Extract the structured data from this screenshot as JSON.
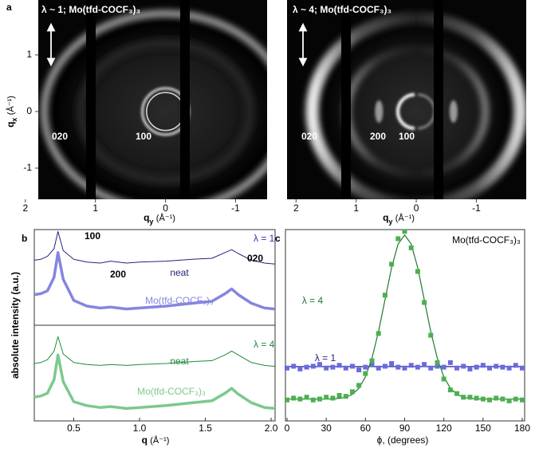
{
  "chart_data": [
    {
      "type": "diffraction",
      "panel": "a",
      "title": "λ ~ 1; Mo(tfd-COCF₃)₃",
      "x_label": {
        "symbol": "q",
        "subscript": "y",
        "unit": "(Å⁻¹)"
      },
      "y_label": {
        "symbol": "q",
        "subscript": "x",
        "unit": "(Å⁻¹)"
      },
      "xlim": [
        2.1,
        -1.45
      ],
      "xticks": [
        2,
        1,
        0,
        -1
      ],
      "ylim": [
        1.97,
        -1.55
      ],
      "yticks": [
        1,
        0,
        -1
      ],
      "annotations": [
        "020",
        "100"
      ]
    },
    {
      "type": "diffraction",
      "title": "λ ~ 4; Mo(tfd-COCF₃)₃",
      "x_label": {
        "symbol": "q",
        "subscript": "y",
        "unit": "(Å⁻¹)"
      },
      "xlim": [
        2.15,
        -1.83
      ],
      "xticks": [
        2,
        1,
        0,
        -1
      ],
      "ylim": [
        1.97,
        -1.55
      ],
      "annotations": [
        "020",
        "200",
        "100"
      ]
    },
    {
      "type": "line",
      "panel": "b",
      "x_label": {
        "symbol": "q",
        "unit": "(Å⁻¹)"
      },
      "y_label": "absolute intensity (a.u.)",
      "xlim": [
        0.2,
        2.03
      ],
      "xticks": [
        0.5,
        {
          "value": 1,
          "label": "1.0"
        },
        1.5,
        {
          "value": 2,
          "label": "2.0"
        }
      ],
      "x": [
        0.2,
        0.25,
        0.3,
        0.35,
        0.38,
        0.42,
        0.5,
        0.6,
        0.7,
        0.78,
        0.9,
        1.0,
        1.2,
        1.4,
        1.55,
        1.65,
        1.7,
        1.75,
        1.85,
        1.95,
        2.03
      ],
      "panels": [
        {
          "label": "λ = 1",
          "label_color": "#3333bb",
          "ylim": [
            0,
            10
          ],
          "annotations": [
            "100",
            "200",
            "020"
          ],
          "series": [
            {
              "name": "neat",
              "color": "#23237a",
              "values": [
                6.8,
                6.9,
                7.2,
                8.0,
                9.8,
                7.8,
                6.9,
                6.6,
                6.5,
                6.7,
                6.5,
                6.6,
                6.7,
                6.9,
                7.0,
                7.6,
                7.9,
                7.5,
                6.8,
                6.5,
                6.4
              ]
            },
            {
              "name": "Mo(tfd-COCF₃)₃",
              "color": "#8585e0",
              "values": [
                3.2,
                3.3,
                3.6,
                5.0,
                7.6,
                4.8,
                2.6,
                2.0,
                1.8,
                1.9,
                1.7,
                1.8,
                2.0,
                2.3,
                2.5,
                3.3,
                3.8,
                3.2,
                2.3,
                1.8,
                1.7
              ]
            }
          ]
        },
        {
          "label": "λ = 4",
          "label_color": "#1e8a3c",
          "ylim": [
            0,
            10
          ],
          "series": [
            {
              "name": "neat",
              "color": "#1e8a3c",
              "values": [
                6.0,
                6.1,
                6.4,
                7.3,
                8.8,
                7.0,
                6.1,
                5.9,
                5.8,
                5.9,
                5.8,
                5.9,
                6.0,
                6.2,
                6.3,
                6.9,
                7.3,
                6.9,
                6.1,
                5.8,
                5.7
              ]
            },
            {
              "name": "Mo(tfd-COCF₃)₃",
              "color": "#7cc98c",
              "values": [
                2.5,
                2.6,
                2.9,
                4.3,
                6.9,
                4.1,
                2.0,
                1.6,
                1.4,
                1.5,
                1.3,
                1.4,
                1.6,
                1.9,
                2.1,
                2.9,
                3.4,
                2.8,
                1.9,
                1.4,
                1.3
              ]
            }
          ]
        }
      ]
    },
    {
      "type": "scatter",
      "panel": "c",
      "title": "Mo(tfd-COCF₃)₃",
      "x_label": "ϕ, (degrees)",
      "xlim": [
        0,
        180
      ],
      "xticks": [
        0,
        30,
        60,
        90,
        120,
        150,
        180
      ],
      "ylim": [
        0,
        10.5
      ],
      "x": [
        0,
        5,
        10,
        15,
        20,
        25,
        30,
        35,
        40,
        45,
        50,
        55,
        60,
        65,
        70,
        75,
        80,
        85,
        90,
        95,
        100,
        105,
        110,
        115,
        120,
        125,
        130,
        135,
        140,
        145,
        150,
        155,
        160,
        165,
        170,
        175,
        180
      ],
      "series": [
        {
          "name": "λ = 1",
          "color": "#6a6ae0",
          "fit_color": "#23237a",
          "values": [
            2.9,
            3.0,
            2.85,
            2.95,
            3.0,
            3.1,
            2.9,
            2.95,
            3.05,
            2.9,
            3.0,
            2.8,
            2.95,
            3.1,
            2.9,
            3.0,
            3.15,
            2.95,
            2.9,
            3.05,
            2.95,
            3.1,
            2.9,
            3.0,
            2.95,
            3.2,
            2.9,
            3.0,
            2.85,
            2.95,
            3.05,
            2.9,
            3.0,
            2.95,
            2.9,
            3.05,
            2.9
          ],
          "fit_x": [
            0,
            180
          ],
          "fit_values": [
            2.98,
            2.98
          ]
        },
        {
          "name": "λ = 4",
          "color": "#4caf50",
          "fit_color": "#1e7a32",
          "values": [
            1.15,
            1.25,
            1.2,
            1.3,
            1.15,
            1.2,
            1.3,
            1.25,
            1.4,
            1.35,
            1.6,
            1.95,
            2.6,
            3.3,
            4.8,
            6.9,
            8.6,
            10.0,
            10.4,
            9.5,
            8.2,
            6.5,
            4.7,
            3.2,
            2.3,
            1.7,
            1.5,
            1.3,
            1.3,
            1.25,
            1.2,
            1.15,
            1.25,
            1.2,
            1.1,
            1.2,
            1.15
          ],
          "fit_x": [
            0,
            5,
            10,
            15,
            20,
            25,
            30,
            35,
            40,
            45,
            50,
            55,
            60,
            65,
            70,
            75,
            80,
            85,
            90,
            95,
            100,
            105,
            110,
            115,
            120,
            125,
            130,
            135,
            140,
            145,
            150,
            155,
            160,
            165,
            170,
            175,
            180
          ],
          "fit_values": [
            1.2,
            1.2,
            1.2,
            1.2,
            1.2,
            1.2,
            1.2,
            1.21,
            1.24,
            1.3,
            1.46,
            1.79,
            2.42,
            3.44,
            4.9,
            6.66,
            8.41,
            9.71,
            10.2,
            9.71,
            8.41,
            6.66,
            4.9,
            3.44,
            2.42,
            1.79,
            1.46,
            1.3,
            1.24,
            1.21,
            1.2,
            1.2,
            1.2,
            1.2,
            1.2,
            1.2,
            1.2
          ]
        }
      ]
    }
  ]
}
